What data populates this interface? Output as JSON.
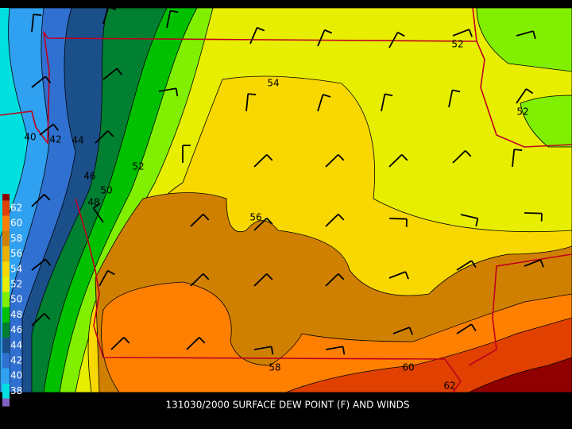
{
  "caption": "131030/2000 SURFACE DEW POINT (F) AND WINDS",
  "legend": {
    "labels": [
      "62",
      "60",
      "58",
      "56",
      "54",
      "52",
      "50",
      "48",
      "46",
      "44",
      "42",
      "40",
      "38"
    ],
    "colors": [
      "#e04000",
      "#ff8000",
      "#d08000",
      "#e8b000",
      "#f8d800",
      "#e8ee00",
      "#80f000",
      "#00c000",
      "#008030",
      "#1a4f8a",
      "#3070d0",
      "#30a0f0",
      "#00e0e0"
    ]
  },
  "contour_labels": [
    "40",
    "42",
    "44",
    "46",
    "48",
    "50",
    "52",
    "54",
    "56",
    "58",
    "60",
    "62",
    "52",
    "52"
  ]
}
